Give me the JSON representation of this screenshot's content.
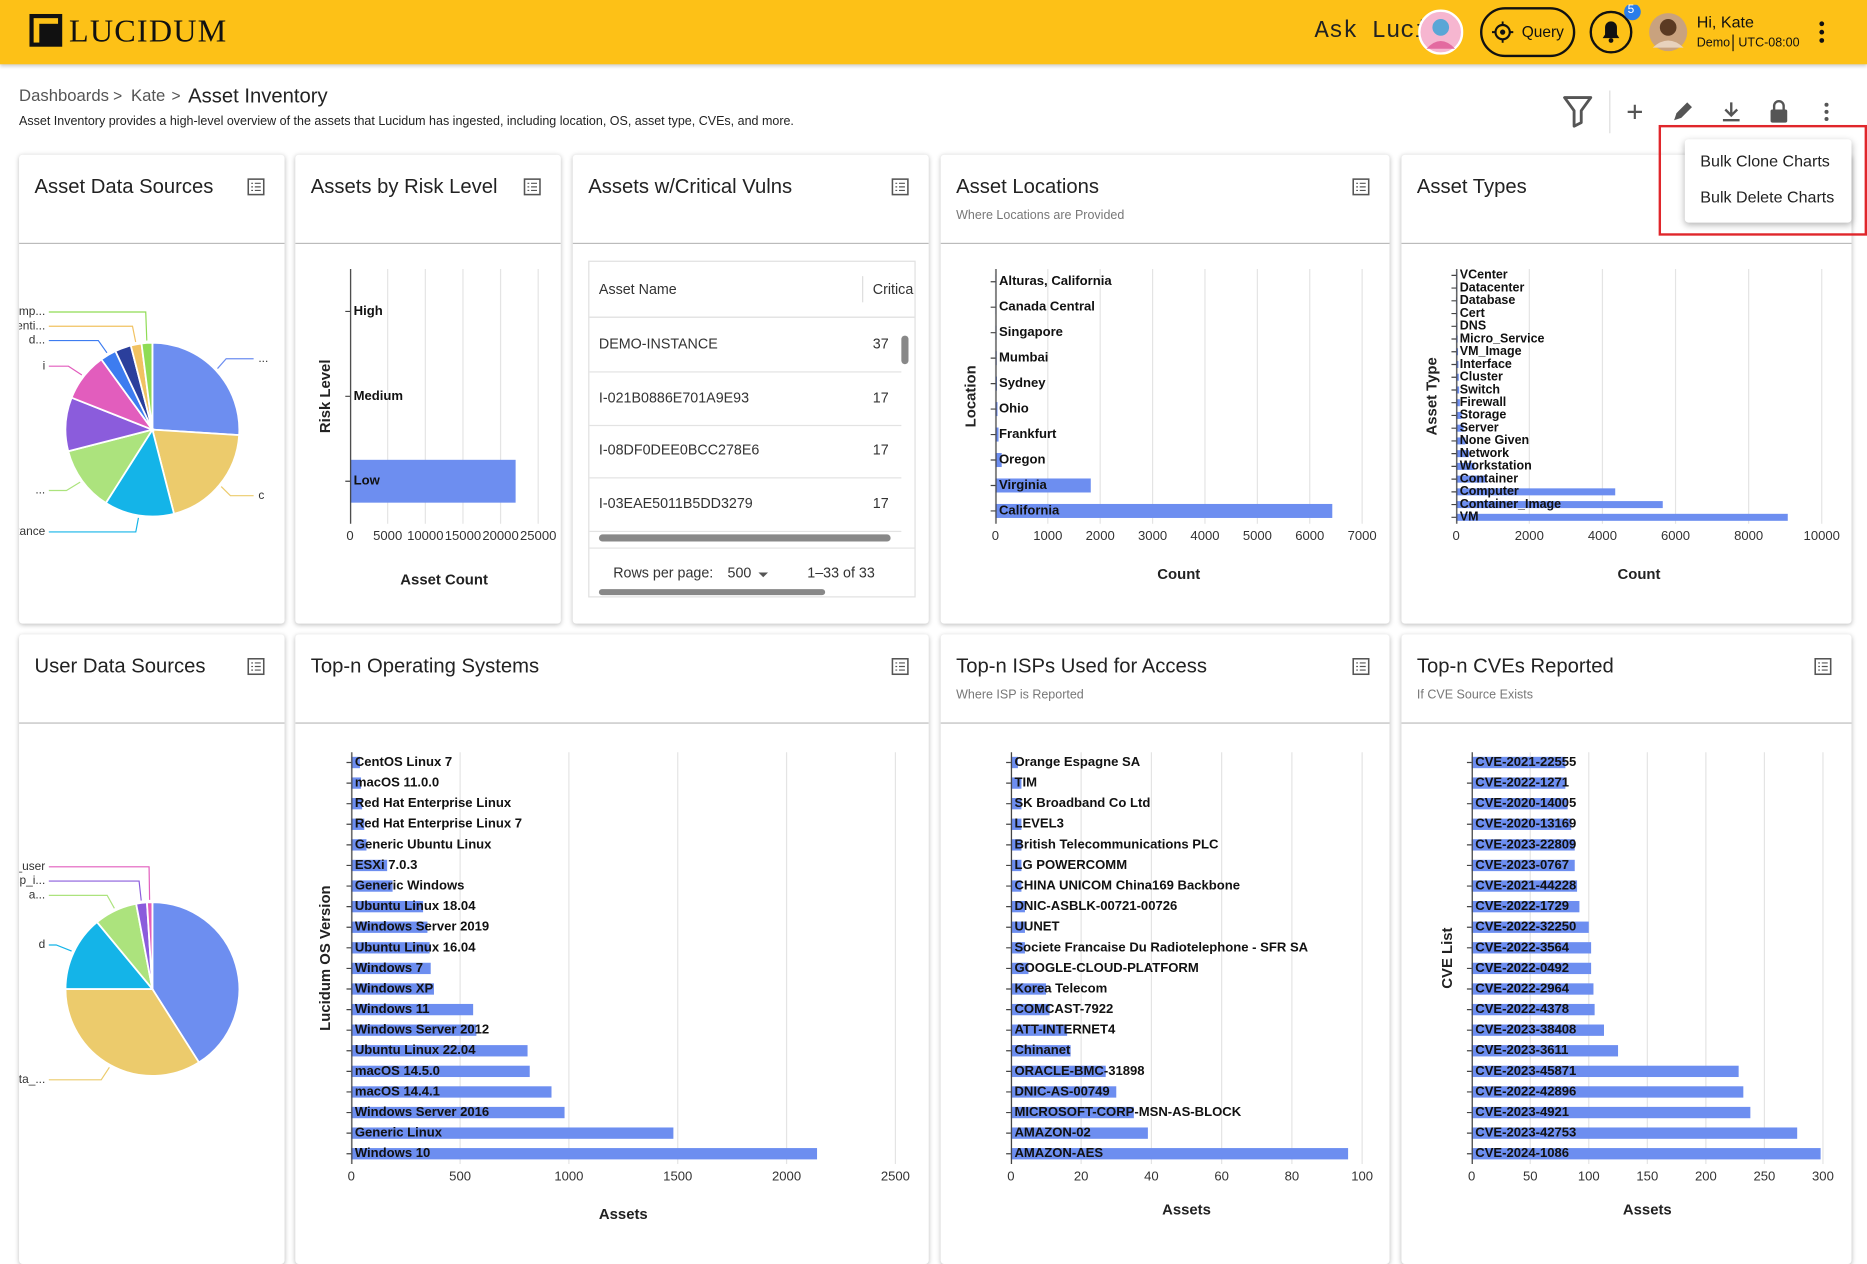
{
  "header": {
    "logo": "LUCIDUM",
    "ask": "Ask Luci:",
    "query": "Query",
    "notifications": 5,
    "greeting": "Hi, Kate",
    "org": "Demo",
    "timezone": "UTC-08:00"
  },
  "breadcrumbs": {
    "items": [
      "Dashboards",
      "Kate",
      "Asset Inventory"
    ],
    "separator": ">"
  },
  "description": "Asset Inventory provides a high-level overview of the assets that Lucidum has ingested, including location, OS, asset type, CVEs, and more.",
  "menu": [
    "Bulk Clone Charts",
    "Bulk Delete Charts"
  ],
  "table": {
    "title": "Assets w/Critical Vulns",
    "columns": [
      "Asset Name",
      "Critica"
    ],
    "rows": [
      [
        "DEMO-INSTANCE",
        37
      ],
      [
        "I-021B0886E701A9E93",
        17
      ],
      [
        "I-08DF0DEE0BCC278E6",
        17
      ],
      [
        "I-03EAE5011B5DD3279",
        17
      ]
    ],
    "rows_per_page_label": "Rows per page:",
    "rows_per_page": 500,
    "range": "1–33 of 33"
  },
  "chart_data": [
    {
      "type": "pie",
      "title": "Asset Data Sources",
      "categories": [
        "...",
        "c",
        "oci_instance",
        "...",
        null,
        "i",
        "d...",
        null,
        "senti...",
        "sepm_comp..."
      ],
      "values": [
        26,
        20,
        13,
        12,
        10,
        9,
        3,
        3,
        2,
        2
      ],
      "colors": [
        "#6d8ef0",
        "#eccb6c",
        "#14b4e8",
        "#ace37d",
        "#8b5cdc",
        "#e25dbd",
        "#3d7cf0",
        "#2b3f9c",
        "#f1c262",
        "#8fdc55"
      ]
    },
    {
      "type": "bar",
      "orientation": "horizontal",
      "title": "Assets by Risk Level",
      "categories": [
        "High",
        "Medium",
        "Low"
      ],
      "values": [
        0,
        0,
        22000
      ],
      "color": "#6d8ef0",
      "xlim": [
        0,
        25000
      ],
      "xticks": [
        0,
        5000,
        10000,
        15000,
        20000,
        25000
      ],
      "xlabel": "Asset Count",
      "ylabel": "Risk Level",
      "grid": true
    },
    {
      "type": "bar",
      "orientation": "horizontal",
      "title": "Asset Locations",
      "subtitle": "Where Locations are Provided",
      "categories": [
        "Alturas, California",
        "Canada Central",
        "Singapore",
        "Mumbai",
        "Sydney",
        "Ohio",
        "Frankfurt",
        "Oregon",
        "Virginia",
        "California"
      ],
      "values": [
        15,
        20,
        22,
        25,
        30,
        40,
        60,
        120,
        1820,
        6430
      ],
      "color": "#6d8ef0",
      "xlim": [
        0,
        7000
      ],
      "xticks": [
        0,
        1000,
        2000,
        3000,
        4000,
        5000,
        6000,
        7000
      ],
      "xlabel": "Count",
      "ylabel": "Location",
      "grid": true
    },
    {
      "type": "bar",
      "orientation": "horizontal",
      "title": "Asset Types",
      "categories": [
        "VCenter",
        "Datacenter",
        "Database",
        "Cert",
        "DNS",
        "Micro_Service",
        "VM_Image",
        "Interface",
        "Cluster",
        "Switch",
        "Firewall",
        "Storage",
        "Server",
        "None Given",
        "Network",
        "Workstation",
        "Container",
        "Computer",
        "Container_Image",
        "VM"
      ],
      "values": [
        10,
        15,
        20,
        25,
        30,
        40,
        50,
        60,
        70,
        80,
        100,
        150,
        200,
        250,
        350,
        500,
        800,
        4350,
        5650,
        9070
      ],
      "color": "#6d8ef0",
      "xlim": [
        0,
        10000
      ],
      "xticks": [
        0,
        2000,
        4000,
        6000,
        8000,
        10000
      ],
      "xlabel": "Count",
      "ylabel": "Asset Type",
      "grid": true
    },
    {
      "type": "pie",
      "title": "User Data Sources",
      "categories": [
        null,
        "okta_...",
        "d",
        "a...",
        "gcp_i...",
        "oci_user"
      ],
      "values": [
        41,
        34,
        14,
        8,
        2,
        1
      ],
      "colors": [
        "#6d8ef0",
        "#eccb6c",
        "#14b4e8",
        "#ace37d",
        "#8b5cdc",
        "#e25dbd"
      ]
    },
    {
      "type": "bar",
      "orientation": "horizontal",
      "title": "Top-n Operating Systems",
      "categories": [
        "CentOS Linux 7",
        "macOS 11.0.0",
        "Red Hat Enterprise Linux",
        "Red Hat Enterprise Linux 7",
        "Generic Ubuntu Linux",
        "ESXi 7.0.3",
        "Generic Windows",
        "Ubuntu Linux 18.04",
        "Windows Server 2019",
        "Ubuntu Linux 16.04",
        "Windows 7",
        "Windows XP",
        "Windows 11",
        "Windows Server 2012",
        "Ubuntu Linux 22.04",
        "macOS 14.5.0",
        "macOS 14.4.1",
        "Windows Server 2016",
        "Generic Linux",
        "Windows 10"
      ],
      "values": [
        40,
        45,
        50,
        60,
        70,
        165,
        190,
        330,
        350,
        360,
        365,
        380,
        560,
        575,
        810,
        820,
        920,
        980,
        1480,
        2140
      ],
      "color": "#6d8ef0",
      "xlim": [
        0,
        2500
      ],
      "xticks": [
        0,
        500,
        1000,
        1500,
        2000,
        2500
      ],
      "xlabel": "Assets",
      "ylabel": "Lucidum OS Version",
      "grid": true
    },
    {
      "type": "bar",
      "orientation": "horizontal",
      "title": "Top-n ISPs Used for Access",
      "subtitle": "Where ISP is Reported",
      "categories": [
        "Orange Espagne SA",
        "TIM",
        "SK Broadband Co Ltd",
        "LEVEL3",
        "British Telecommunications PLC",
        "LG POWERCOMM",
        "CHINA UNICOM China169 Backbone",
        "DNIC-ASBLK-00721-00726",
        "UUNET",
        "Societe Francaise Du Radiotelephone - SFR SA",
        "GOOGLE-CLOUD-PLATFORM",
        "Korea Telecom",
        "COMCAST-7922",
        "ATT-INTERNET4",
        "Chinanet",
        "ORACLE-BMC-31898",
        "DNIC-AS-00749",
        "MICROSOFT-CORP-MSN-AS-BLOCK",
        "AMAZON-02",
        "AMAZON-AES"
      ],
      "values": [
        2,
        3,
        3,
        3,
        3,
        3,
        3,
        4,
        4,
        4,
        5,
        10,
        11,
        16,
        17,
        27,
        30,
        35,
        39,
        96
      ],
      "color": "#6d8ef0",
      "xlim": [
        0,
        100
      ],
      "xticks": [
        0,
        20,
        40,
        60,
        80,
        100
      ],
      "xlabel": "Assets",
      "grid": true
    },
    {
      "type": "bar",
      "orientation": "horizontal",
      "title": "Top-n CVEs Reported",
      "subtitle": "If CVE Source Exists",
      "categories": [
        "CVE-2021-22555",
        "CVE-2022-1271",
        "CVE-2020-14005",
        "CVE-2020-13169",
        "CVE-2023-22809",
        "CVE-2023-0767",
        "CVE-2021-44228",
        "CVE-2022-1729",
        "CVE-2022-32250",
        "CVE-2022-3564",
        "CVE-2022-0492",
        "CVE-2022-2964",
        "CVE-2022-4378",
        "CVE-2023-38408",
        "CVE-2023-3611",
        "CVE-2023-45871",
        "CVE-2022-42896",
        "CVE-2023-4921",
        "CVE-2023-42753",
        "CVE-2024-1086"
      ],
      "values": [
        80,
        80,
        82,
        85,
        88,
        88,
        90,
        92,
        100,
        102,
        102,
        104,
        105,
        113,
        125,
        228,
        232,
        238,
        278,
        298
      ],
      "color": "#6d8ef0",
      "xlim": [
        0,
        300
      ],
      "xticks": [
        0,
        50,
        100,
        150,
        200,
        250,
        300
      ],
      "xlabel": "Assets",
      "ylabel": "CVE List",
      "grid": true
    }
  ]
}
